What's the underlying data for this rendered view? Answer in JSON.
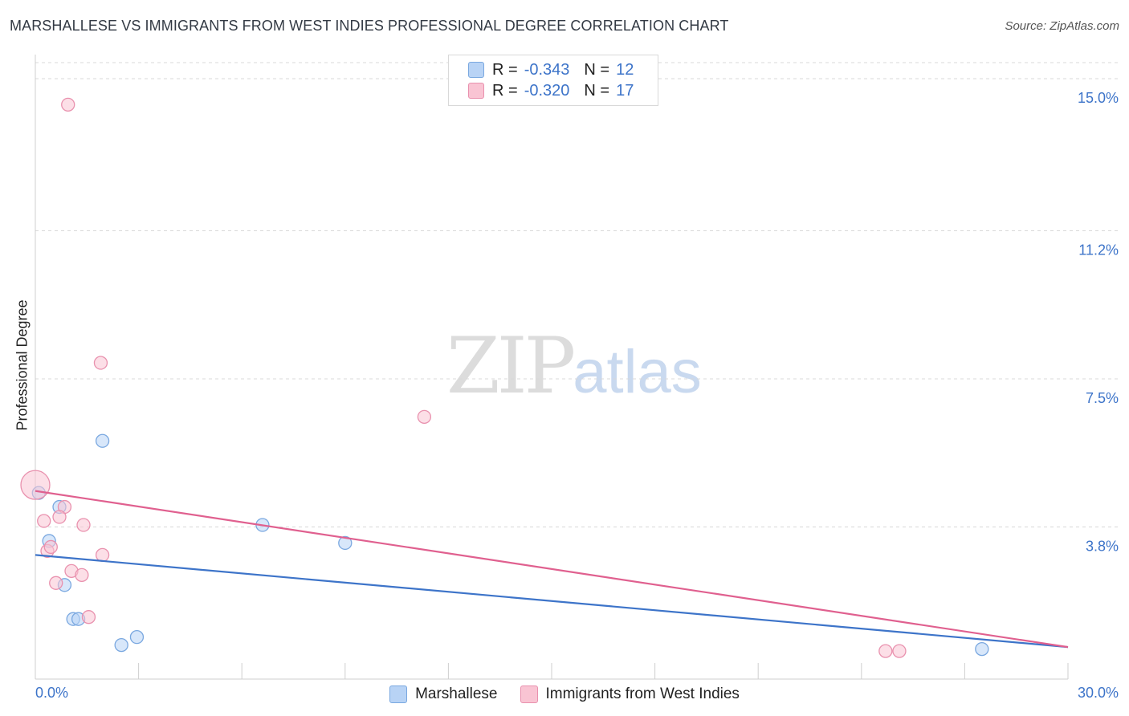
{
  "header": {
    "title": "MARSHALLESE VS IMMIGRANTS FROM WEST INDIES PROFESSIONAL DEGREE CORRELATION CHART",
    "source": "Source: ZipAtlas.com"
  },
  "watermark": {
    "part1": "ZIP",
    "part2": "atlas"
  },
  "legend_top": [
    {
      "r_label": "R =",
      "r_value": "-0.343",
      "n_label": "N =",
      "n_value": "12"
    },
    {
      "r_label": "R =",
      "r_value": "-0.320",
      "n_label": "N =",
      "n_value": "17"
    }
  ],
  "colors": {
    "blue_fill": "#b8d3f5",
    "blue_stroke": "#7aa8e0",
    "blue_line": "#3d74c9",
    "pink_fill": "#f9c4d3",
    "pink_stroke": "#e991ae",
    "pink_line": "#e0608f",
    "tick_text": "#3d74c9",
    "grid": "#d8d8d8"
  },
  "chart_data": {
    "type": "scatter",
    "title": "MARSHALLESE VS IMMIGRANTS FROM WEST INDIES PROFESSIONAL DEGREE CORRELATION CHART",
    "xlabel": "",
    "ylabel": "Professional Degree",
    "xlim": [
      0,
      30
    ],
    "ylim": [
      0,
      15.4
    ],
    "x_tick_labels": [
      {
        "value": 0,
        "label": "0.0%"
      },
      {
        "value": 30,
        "label": "30.0%"
      }
    ],
    "y_ticks": [
      {
        "value": 3.8,
        "label": "3.8%"
      },
      {
        "value": 7.5,
        "label": "7.5%"
      },
      {
        "value": 11.2,
        "label": "11.2%"
      },
      {
        "value": 15.0,
        "label": "15.0%"
      }
    ],
    "grid": true,
    "legend_position": "bottom",
    "series": [
      {
        "name": "Marshallese",
        "color": "#b8d3f5",
        "points": [
          [
            0.1,
            4.65
          ],
          [
            1.95,
            5.95
          ],
          [
            0.7,
            4.3
          ],
          [
            0.4,
            3.45
          ],
          [
            0.85,
            2.35
          ],
          [
            1.1,
            1.5
          ],
          [
            1.25,
            1.5
          ],
          [
            2.5,
            0.85
          ],
          [
            2.95,
            1.05
          ],
          [
            6.6,
            3.85
          ],
          [
            9.0,
            3.4
          ],
          [
            27.5,
            0.75
          ]
        ],
        "trend": [
          [
            0,
            3.1
          ],
          [
            30,
            0.8
          ]
        ]
      },
      {
        "name": "Immigrants from West Indies",
        "color": "#f9c4d3",
        "points": [
          [
            0.95,
            14.35
          ],
          [
            1.9,
            7.9
          ],
          [
            11.3,
            6.55
          ],
          [
            0.0,
            4.85
          ],
          [
            0.85,
            4.3
          ],
          [
            0.25,
            3.95
          ],
          [
            0.7,
            4.05
          ],
          [
            1.4,
            3.85
          ],
          [
            0.35,
            3.2
          ],
          [
            0.45,
            3.3
          ],
          [
            1.95,
            3.1
          ],
          [
            1.05,
            2.7
          ],
          [
            1.35,
            2.6
          ],
          [
            0.6,
            2.4
          ],
          [
            1.55,
            1.55
          ],
          [
            24.7,
            0.7
          ],
          [
            25.1,
            0.7
          ]
        ],
        "trend": [
          [
            0,
            4.7
          ],
          [
            30,
            0.8
          ]
        ]
      }
    ]
  }
}
